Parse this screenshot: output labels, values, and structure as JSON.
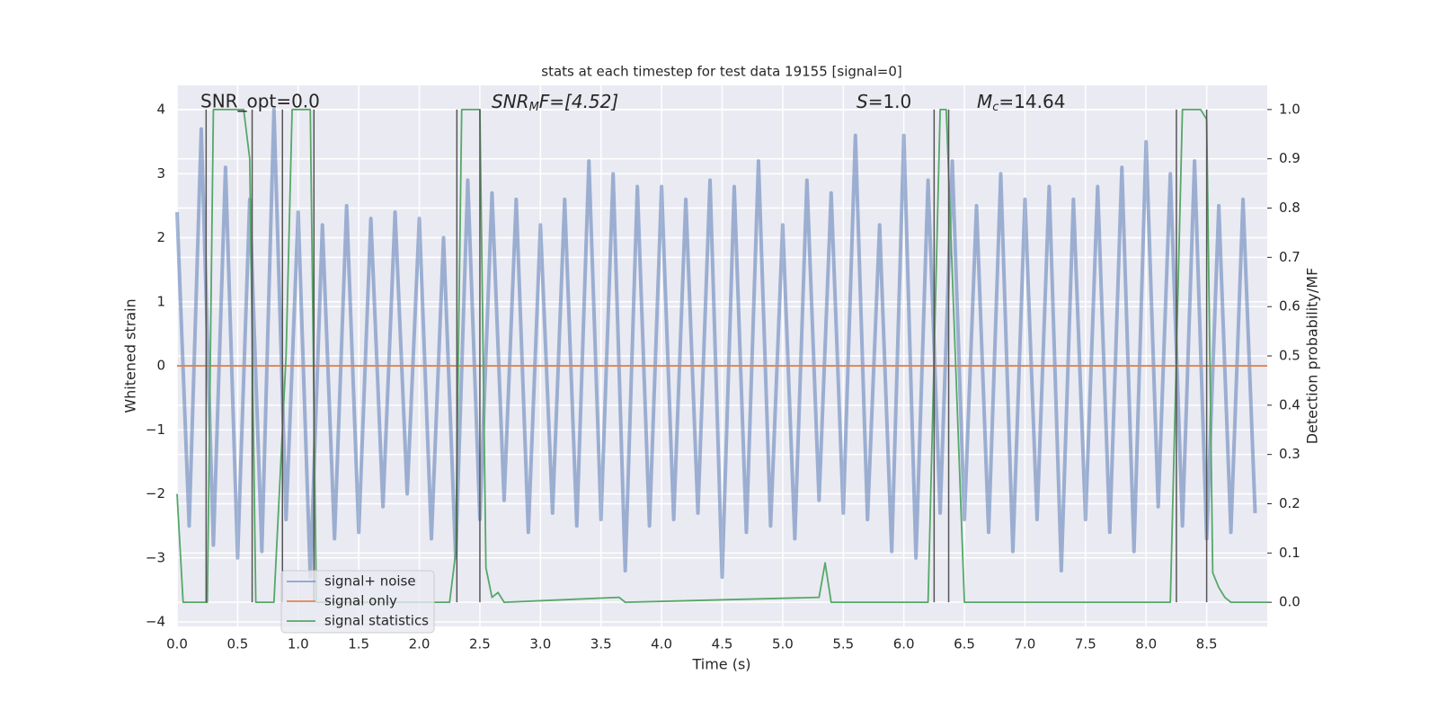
{
  "chart_data": {
    "type": "line",
    "title": "stats at each timestep for test data 19155 [signal=0]",
    "xlabel": "Time (s)",
    "ylabel": "Whitened strain",
    "y2label": "Detection probability/MF",
    "xlim": [
      0,
      9.0
    ],
    "ylim": [
      -4.07,
      4.38
    ],
    "y2lim": [
      -0.049,
      1.049
    ],
    "xticks": [
      {
        "value": 0,
        "label": "0.0"
      },
      0.5,
      {
        "value": 1,
        "label": "1.0"
      },
      1.5,
      {
        "value": 2,
        "label": "2.0"
      },
      2.5,
      {
        "value": 3,
        "label": "3.0"
      },
      3.5,
      {
        "value": 4,
        "label": "4.0"
      },
      4.5,
      {
        "value": 5,
        "label": "5.0"
      },
      5.5,
      {
        "value": 6,
        "label": "6.0"
      },
      6.5,
      {
        "value": 7,
        "label": "7.0"
      },
      7.5,
      {
        "value": 8,
        "label": "8.0"
      },
      8.5
    ],
    "yticks": [
      {
        "value": -4,
        "label": "−4"
      },
      {
        "value": -3,
        "label": "−3"
      },
      {
        "value": -2,
        "label": "−2"
      },
      {
        "value": -1,
        "label": "−1"
      },
      0,
      1,
      2,
      3,
      4
    ],
    "y2ticks": [
      {
        "value": 0,
        "label": "0.0"
      },
      0.1,
      0.2,
      0.3,
      0.4,
      0.5,
      0.6,
      0.7,
      0.8,
      0.9,
      {
        "value": 1,
        "label": "1.0"
      }
    ],
    "grid": true,
    "legend": "lower left",
    "series": [
      {
        "name": "signal+ noise",
        "color": "#4c72b0",
        "x": [
          0,
          0.1,
          0.2,
          0.3,
          0.4,
          0.5,
          0.6,
          0.7,
          0.8,
          0.9,
          1,
          1.1,
          1.2,
          1.3,
          1.4,
          1.5,
          1.6,
          1.7,
          1.8,
          1.9,
          2,
          2.1,
          2.2,
          2.3,
          2.4,
          2.5,
          2.6,
          2.7,
          2.8,
          2.9,
          3,
          3.1,
          3.2,
          3.3,
          3.4,
          3.5,
          3.6,
          3.7,
          3.8,
          3.9,
          4,
          4.1,
          4.2,
          4.3,
          4.4,
          4.5,
          4.6,
          4.7,
          4.8,
          4.9,
          5,
          5.1,
          5.2,
          5.3,
          5.4,
          5.5,
          5.6,
          5.7,
          5.8,
          5.9,
          6,
          6.1,
          6.2,
          6.3,
          6.4,
          6.5,
          6.6,
          6.7,
          6.8,
          6.9,
          7,
          7.1,
          7.2,
          7.3,
          7.4,
          7.5,
          7.6,
          7.7,
          7.8,
          7.9,
          8,
          8.1,
          8.2,
          8.3,
          8.4,
          8.5,
          8.6,
          8.7,
          8.8,
          8.9
        ],
        "values": [
          2.4,
          -2.5,
          3.7,
          -2.8,
          3.1,
          -3.0,
          2.6,
          -2.9,
          4.0,
          -2.4,
          2.4,
          -3.3,
          2.2,
          -2.7,
          2.5,
          -2.6,
          2.3,
          -2.2,
          2.4,
          -2.0,
          2.3,
          -2.7,
          2.0,
          -3.0,
          2.9,
          -2.4,
          2.7,
          -2.1,
          2.6,
          -2.6,
          2.2,
          -2.3,
          2.6,
          -2.5,
          3.2,
          -2.4,
          3.0,
          -3.2,
          2.8,
          -2.5,
          2.8,
          -2.4,
          2.6,
          -2.3,
          2.9,
          -3.3,
          2.8,
          -2.6,
          3.2,
          -2.5,
          2.2,
          -2.7,
          2.9,
          -2.1,
          2.7,
          -2.3,
          3.6,
          -2.4,
          2.2,
          -2.9,
          3.6,
          -3.0,
          2.9,
          -2.3,
          3.2,
          -2.4,
          2.5,
          -2.6,
          3.0,
          -2.9,
          2.6,
          -2.4,
          2.8,
          -3.2,
          2.6,
          -2.4,
          2.8,
          -2.6,
          3.1,
          -2.9,
          3.5,
          -2.2,
          3.0,
          -2.5,
          3.2,
          -2.7,
          2.5,
          -2.6,
          2.6,
          -2.3
        ]
      },
      {
        "name": "signal only",
        "color": "#dd8452",
        "x": [
          0,
          9.0
        ],
        "values": [
          0,
          0
        ]
      },
      {
        "name": "signal statistics",
        "color": "#55a868",
        "axis": "y2",
        "x": [
          0,
          0.05,
          0.2,
          0.25,
          0.3,
          0.5,
          0.55,
          0.6,
          0.65,
          0.8,
          0.9,
          0.95,
          1.1,
          1.15,
          2.25,
          2.3,
          2.35,
          2.5,
          2.55,
          2.6,
          2.65,
          2.7,
          3.65,
          3.7,
          5.3,
          5.35,
          5.4,
          6.2,
          6.25,
          6.3,
          6.35,
          6.5,
          8.2,
          8.25,
          8.3,
          8.45,
          8.5,
          8.55,
          8.6,
          8.65,
          8.7,
          9.0
        ],
        "values": [
          0.22,
          0,
          0,
          0,
          1,
          1,
          1,
          0.9,
          0,
          0,
          0.5,
          1,
          1,
          0,
          0,
          0.1,
          1,
          1,
          0.07,
          0.01,
          0.02,
          0,
          0.01,
          0,
          0.01,
          0.08,
          0,
          0,
          0.5,
          1,
          1,
          0,
          0,
          0.5,
          1,
          1,
          0.98,
          0.06,
          0.03,
          0.01,
          0,
          0
        ]
      }
    ],
    "vlines": [
      0.24,
      0.62,
      0.87,
      1.13,
      2.31,
      2.5,
      6.25,
      6.37,
      8.25,
      8.5
    ],
    "annotations": [
      {
        "text": "SNR_opt=0.0"
      },
      {
        "base": "SNR",
        "sub": "M",
        "rest": "F=[4.52]"
      },
      {
        "base": "S",
        "rest": "=1.0"
      },
      {
        "base": "M",
        "sub": "c",
        "rest": "=14.64"
      }
    ]
  }
}
